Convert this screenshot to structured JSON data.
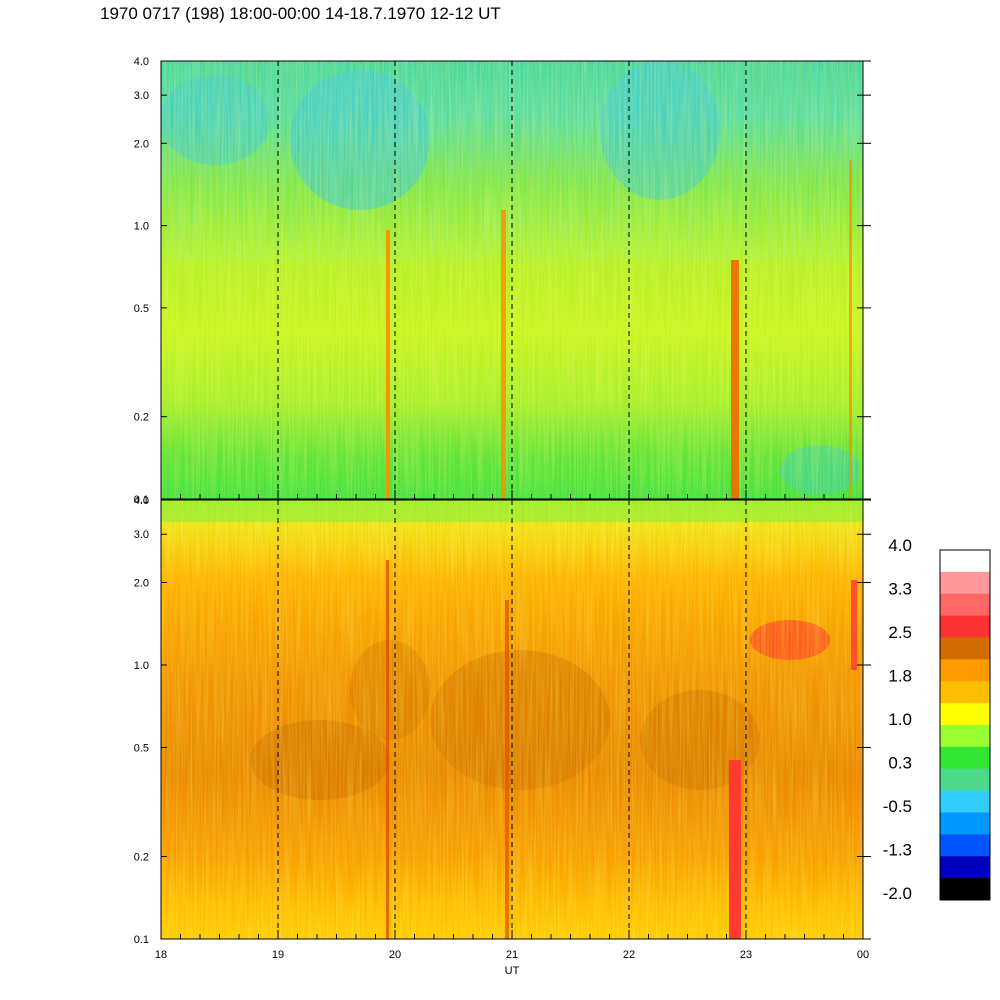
{
  "title": "1970 0717 (198) 18:00-00:00 14-18.7.1970  12-12 UT",
  "chart_data": [
    {
      "type": "heatmap",
      "panel": "upper",
      "x_ticks": [
        "18",
        "19",
        "20",
        "21",
        "22",
        "23",
        "00"
      ],
      "y_ticks": [
        "0.1",
        "0.2",
        "0.5",
        "1.0",
        "2.0",
        "3.0",
        "4.0"
      ],
      "y_scale": "log",
      "ylim": [
        0.1,
        4.0
      ],
      "xlim": [
        "18",
        "00"
      ],
      "marker_hours": [
        19,
        20,
        21,
        22,
        23
      ],
      "dominant_levels": [
        "0.3",
        "1.0"
      ]
    },
    {
      "type": "heatmap",
      "panel": "lower",
      "x_ticks": [
        "18",
        "19",
        "20",
        "21",
        "22",
        "23",
        "00"
      ],
      "y_ticks": [
        "0.1",
        "0.2",
        "0.5",
        "1.0",
        "2.0",
        "3.0",
        "4.0"
      ],
      "y_scale": "log",
      "ylim": [
        0.1,
        4.0
      ],
      "xlim": [
        "18",
        "00"
      ],
      "xlabel": "UT",
      "marker_hours": [
        19,
        20,
        21,
        22,
        23
      ],
      "dominant_levels": [
        "1.8",
        "2.5"
      ]
    }
  ],
  "colorbar": {
    "labels": [
      "4.0",
      "3.3",
      "2.5",
      "1.8",
      "1.0",
      "0.3",
      "-0.5",
      "-1.3",
      "-2.0"
    ],
    "colors": [
      "#ffffff",
      "#ff9999",
      "#ff6666",
      "#ff3333",
      "#d26e00",
      "#ff9a00",
      "#ffbe00",
      "#ffff00",
      "#99ff33",
      "#33e633",
      "#4dd98c",
      "#33ccff",
      "#0099ff",
      "#0055ff",
      "#0000bb",
      "#000000"
    ]
  }
}
